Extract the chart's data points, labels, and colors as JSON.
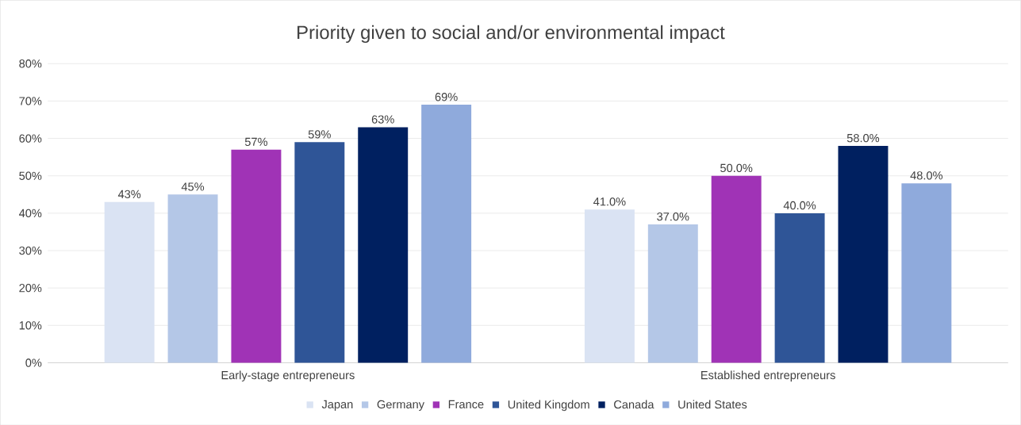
{
  "chart_data": {
    "type": "bar",
    "title": "Priority given to social and/or environmental impact",
    "categories": [
      "Early-stage entrepreneurs",
      "Established entrepreneurs"
    ],
    "series": [
      {
        "name": "Japan",
        "color": "#dae3f3",
        "values": [
          43,
          41
        ],
        "value_labels": [
          "43%",
          "41.0%"
        ]
      },
      {
        "name": "Germany",
        "color": "#b4c7e7",
        "values": [
          45,
          37
        ],
        "value_labels": [
          "45%",
          "37.0%"
        ]
      },
      {
        "name": "France",
        "color": "#a033b6",
        "values": [
          57,
          50
        ],
        "value_labels": [
          "57%",
          "50.0%"
        ]
      },
      {
        "name": "United Kingdom",
        "color": "#2f5597",
        "values": [
          59,
          40
        ],
        "value_labels": [
          "59%",
          "40.0%"
        ]
      },
      {
        "name": "Canada",
        "color": "#002060",
        "values": [
          63,
          58
        ],
        "value_labels": [
          "63%",
          "58.0%"
        ]
      },
      {
        "name": "United States",
        "color": "#8faadc",
        "values": [
          69,
          48
        ],
        "value_labels": [
          "69%",
          "48.0%"
        ]
      }
    ],
    "ylim": [
      0,
      80
    ],
    "yticks": [
      {
        "value": 0,
        "label": "0%"
      },
      {
        "value": 10,
        "label": "10%"
      },
      {
        "value": 20,
        "label": "20%"
      },
      {
        "value": 30,
        "label": "30%"
      },
      {
        "value": 40,
        "label": "40%"
      },
      {
        "value": 50,
        "label": "50%"
      },
      {
        "value": 60,
        "label": "60%"
      },
      {
        "value": 70,
        "label": "70%"
      },
      {
        "value": 80,
        "label": "80%"
      }
    ],
    "grid": "y",
    "legend": "bottom"
  }
}
